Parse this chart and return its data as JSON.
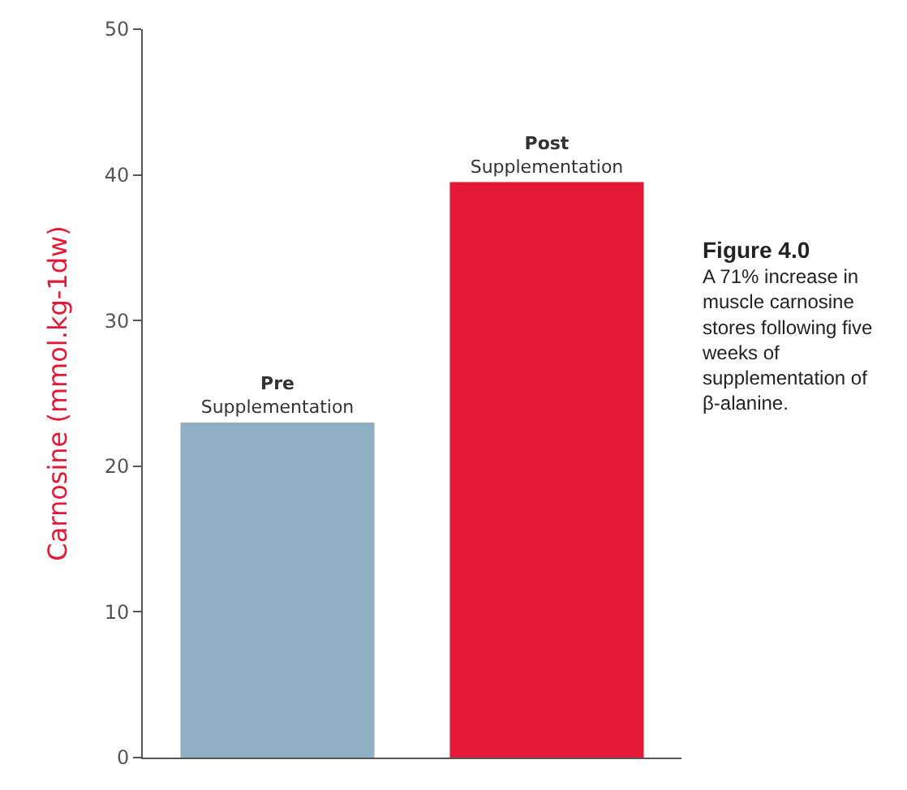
{
  "chart_data": {
    "type": "bar",
    "title": "Figure 4.0",
    "categories": [
      "Pre\nSupplementation",
      "Post\nSupplementation"
    ],
    "values": [
      23,
      39.5
    ],
    "colors": [
      "#8fafc3",
      "#e31937"
    ],
    "ylabel": "Carnosine (mmol.kg-1dw)",
    "ylim": [
      0,
      50
    ],
    "yticks": [
      0,
      10,
      20,
      30,
      40,
      50
    ],
    "annotations": [
      "A 71% increase in muscle carnosine stores following five weeks of supplementation of β-alanine."
    ]
  }
}
